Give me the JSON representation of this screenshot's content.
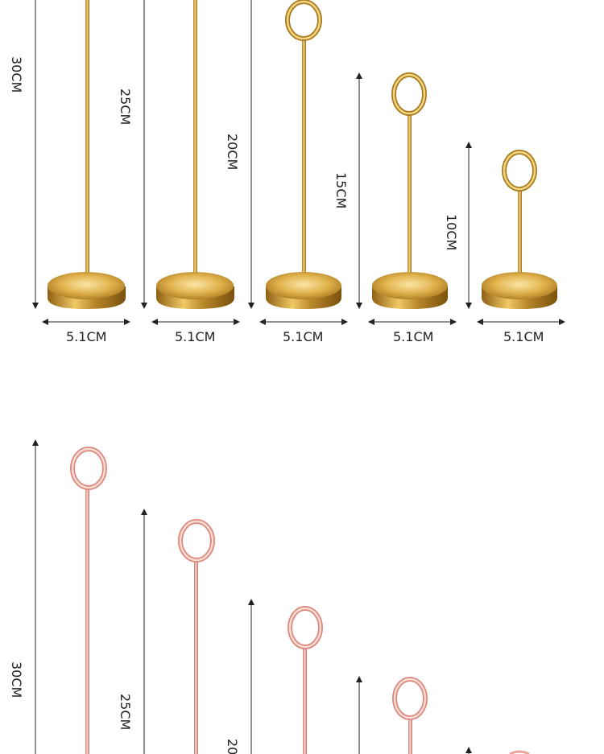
{
  "gold_set": {
    "accent": "#c9a038",
    "heights": [
      "30CM",
      "25CM",
      "20CM",
      "15CM",
      "10CM"
    ],
    "widths": [
      "5.1CM",
      "5.1CM",
      "5.1CM",
      "5.1CM",
      "5.1CM"
    ]
  },
  "rose_set": {
    "accent": "#e8a49a",
    "heights": [
      "30CM",
      "25CM",
      "20"
    ]
  }
}
